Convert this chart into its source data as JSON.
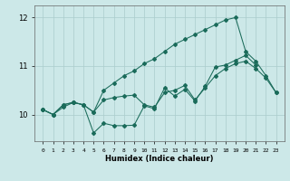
{
  "xlabel": "Humidex (Indice chaleur)",
  "x": [
    0,
    1,
    2,
    3,
    4,
    5,
    6,
    7,
    8,
    9,
    10,
    11,
    12,
    13,
    14,
    15,
    16,
    17,
    18,
    19,
    20,
    21,
    22,
    23
  ],
  "line1": [
    10.1,
    10.0,
    10.15,
    10.25,
    10.2,
    10.05,
    10.5,
    10.65,
    10.8,
    10.9,
    11.05,
    11.15,
    11.3,
    11.45,
    11.55,
    11.65,
    11.75,
    11.85,
    11.95,
    12.0,
    11.3,
    11.1,
    10.8,
    10.45
  ],
  "line2": [
    10.1,
    10.0,
    10.2,
    10.25,
    10.2,
    10.05,
    10.3,
    10.35,
    10.38,
    10.4,
    10.2,
    10.15,
    10.45,
    10.5,
    10.6,
    10.3,
    10.55,
    10.8,
    10.95,
    11.05,
    11.1,
    10.95,
    10.75,
    10.45
  ],
  "line3": [
    10.1,
    10.0,
    10.2,
    10.25,
    10.2,
    9.62,
    9.82,
    9.77,
    9.77,
    9.78,
    10.18,
    10.12,
    10.55,
    10.38,
    10.52,
    10.28,
    10.58,
    10.98,
    11.02,
    11.12,
    11.22,
    11.02,
    null,
    null
  ],
  "bg_color": "#cce8e8",
  "grid_color": "#aacccc",
  "line_color": "#1a6b5a",
  "ylim_min": 9.45,
  "ylim_max": 12.25,
  "yticks": [
    10,
    11,
    12
  ]
}
